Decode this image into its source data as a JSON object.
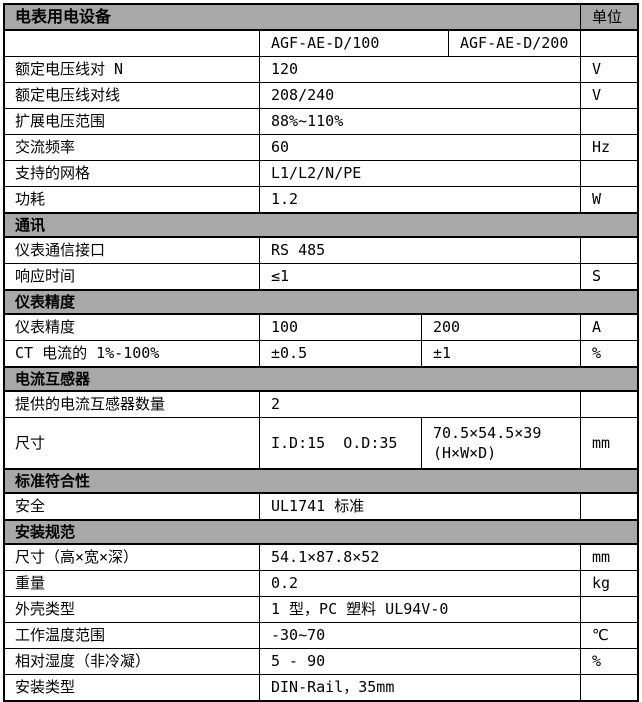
{
  "page": {
    "background": "#ffffff"
  },
  "table": {
    "colors": {
      "section_bg": "#a8a8a8",
      "border": "#000000",
      "text": "#000000"
    },
    "header": {
      "title": "电表用电设备",
      "unit_label": "单位"
    },
    "rows": [
      {
        "kind": "models",
        "label": "",
        "values": [
          "AGF-AE-D/100",
          "AGF-AE-D/200"
        ],
        "unit": ""
      },
      {
        "kind": "data",
        "label": "额定电压线对 N",
        "values": [
          "120"
        ],
        "unit": "V"
      },
      {
        "kind": "data",
        "label": "额定电压线对线",
        "values": [
          "208/240"
        ],
        "unit": "V"
      },
      {
        "kind": "data",
        "label": "扩展电压范围",
        "values": [
          "88%~110%"
        ],
        "unit": ""
      },
      {
        "kind": "data",
        "label": "交流频率",
        "values": [
          "60"
        ],
        "unit": "Hz"
      },
      {
        "kind": "data",
        "label": "支持的网格",
        "values": [
          "L1/L2/N/PE"
        ],
        "unit": ""
      },
      {
        "kind": "data",
        "label": "功耗",
        "values": [
          "1.2"
        ],
        "unit": "W"
      },
      {
        "kind": "section",
        "label": "通讯"
      },
      {
        "kind": "data",
        "label": "仪表通信接口",
        "values": [
          "RS 485"
        ],
        "unit": ""
      },
      {
        "kind": "data",
        "label": "响应时间",
        "values": [
          "≤1"
        ],
        "unit": "S"
      },
      {
        "kind": "section",
        "label": "仪表精度"
      },
      {
        "kind": "data2",
        "label": "仪表精度",
        "values": [
          "100",
          "200"
        ],
        "unit": "A"
      },
      {
        "kind": "data2",
        "label": "CT 电流的 1%-100%",
        "values": [
          "±0.5",
          "±1"
        ],
        "unit": "%"
      },
      {
        "kind": "section",
        "label": "电流互感器"
      },
      {
        "kind": "data",
        "label": "提供的电流互感器数量",
        "values": [
          "2"
        ],
        "unit": ""
      },
      {
        "kind": "data2",
        "label": "尺寸",
        "values": [
          "I.D:15  O.D:35",
          "70.5×54.5×39\n(H×W×D)"
        ],
        "unit": "mm",
        "tall": true
      },
      {
        "kind": "section",
        "label": "标准符合性"
      },
      {
        "kind": "data",
        "label": "安全",
        "values": [
          "UL1741 标准"
        ],
        "unit": ""
      },
      {
        "kind": "section",
        "label": "安装规范"
      },
      {
        "kind": "data",
        "label": "尺寸（高×宽×深）",
        "values": [
          "54.1×87.8×52"
        ],
        "unit": "mm"
      },
      {
        "kind": "data",
        "label": "重量",
        "values": [
          "0.2"
        ],
        "unit": "kg"
      },
      {
        "kind": "data",
        "label": "外壳类型",
        "values": [
          "1 型，PC 塑料 UL94V-0"
        ],
        "unit": ""
      },
      {
        "kind": "data",
        "label": "工作温度范围",
        "values": [
          "-30~70"
        ],
        "unit": "℃"
      },
      {
        "kind": "data",
        "label": "相对湿度（非冷凝）",
        "values": [
          "5 - 90"
        ],
        "unit": "%"
      },
      {
        "kind": "data",
        "label": "安装类型",
        "values": [
          "DIN-Rail，35mm"
        ],
        "unit": ""
      }
    ]
  }
}
